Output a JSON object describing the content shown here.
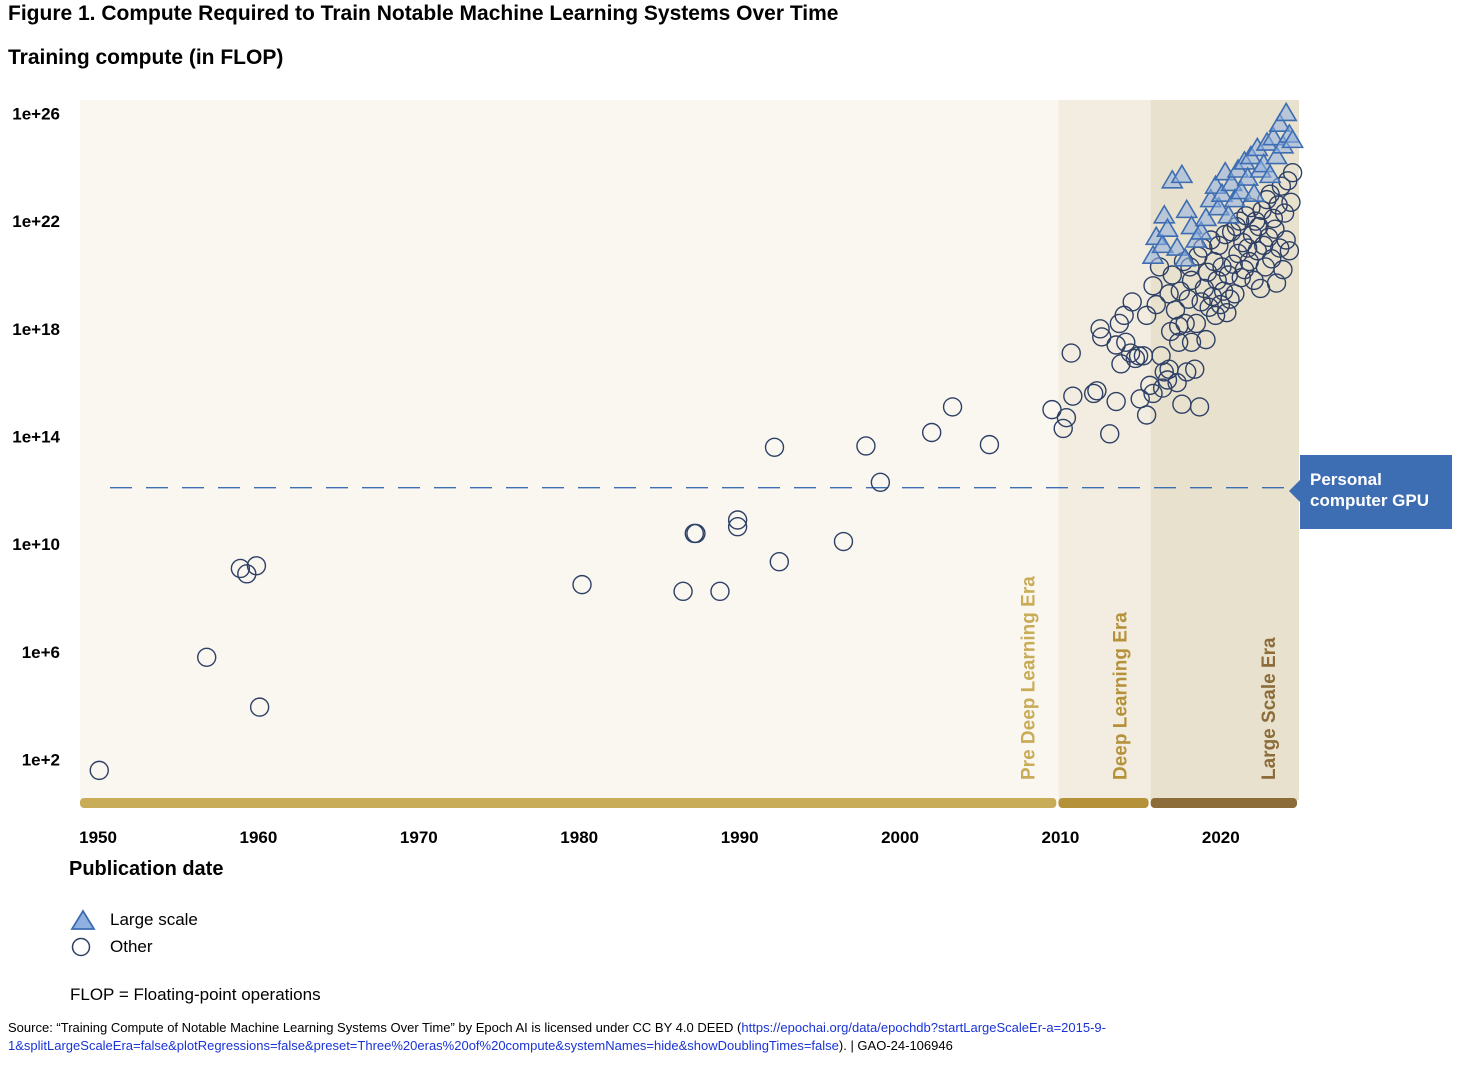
{
  "figure": {
    "title": "Figure 1. Compute Required to Train Notable Machine Learning Systems Over Time",
    "subtitle": "Training compute (in FLOP)"
  },
  "legend": {
    "large_scale": "Large scale",
    "other": "Other"
  },
  "footnote": "FLOP = Floating-point operations",
  "source": {
    "text_before": "Source: “Training Compute of Notable Machine Learning Systems Over Time” by Epoch AI is licensed under CC BY 4.0 DEED (",
    "link": "https://epochai.org/data/epochdb?startLargeScaleEr-a=2015-9-1&splitLargeScaleEra=false&plotRegressions=false&preset=Three%20eras%20of%20compute&systemNames=hide&showDoublingTimes=false",
    "text_after": ").  |  GAO-24-106946"
  },
  "colors": {
    "large_scale_fill": "#8fb0e0",
    "large_scale_stroke": "#3d6db2",
    "other_stroke": "#2e4066",
    "era1_bg": "#faf7f1",
    "era2_bg": "#f2ede0",
    "era3_bg": "#e8e1cd",
    "era1_bar": "#c9ac57",
    "era2_bar": "#b5913a",
    "era3_bar": "#8c6d3a",
    "gpu_box": "#3d6db2"
  },
  "chart_data": {
    "type": "scatter",
    "xlabel": "Publication date",
    "ylabel": "Training compute (in FLOP)",
    "y_scale": "log",
    "xlim": [
      1949,
      2025
    ],
    "ylim_log10": [
      0.5,
      26.5
    ],
    "x_ticks": [
      "1950",
      "1960",
      "1970",
      "1980",
      "1990",
      "2000",
      "2010",
      "2020"
    ],
    "y_ticks": [
      "1e+2",
      "1e+6",
      "1e+10",
      "1e+14",
      "1e+18",
      "1e+22",
      "1e+26"
    ],
    "eras": [
      {
        "label": "Pre Deep Learning Era",
        "start": 1949,
        "end": 2010
      },
      {
        "label": "Deep Learning Era",
        "start": 2010,
        "end": 2015.75
      },
      {
        "label": "Large Scale Era",
        "start": 2015.75,
        "end": 2025
      }
    ],
    "reference_line": {
      "label": "Personal computer GPU",
      "y_log10": 12.1
    },
    "series": [
      {
        "name": "Other",
        "points": [
          [
            1950.2,
            1.6
          ],
          [
            1956.9,
            5.8
          ],
          [
            1959,
            9.1
          ],
          [
            1959.4,
            8.9
          ],
          [
            1960,
            9.2
          ],
          [
            1960.2,
            3.95
          ],
          [
            1980.3,
            8.5
          ],
          [
            1986.6,
            8.25
          ],
          [
            1987.3,
            10.4
          ],
          [
            1987.4,
            10.4
          ],
          [
            1988.9,
            8.25
          ],
          [
            1990,
            10.65
          ],
          [
            1990,
            10.9
          ],
          [
            1992.3,
            13.6
          ],
          [
            1992.6,
            9.35
          ],
          [
            1996.6,
            10.1
          ],
          [
            1998,
            13.65
          ],
          [
            1998.9,
            12.3
          ],
          [
            2002.1,
            14.15
          ],
          [
            2003.4,
            15.1
          ],
          [
            2005.7,
            13.7
          ],
          [
            2009.6,
            15.0
          ],
          [
            2010.3,
            14.3
          ],
          [
            2010.5,
            14.7
          ],
          [
            2010.8,
            17.1
          ],
          [
            2010.9,
            15.5
          ],
          [
            2012.2,
            15.6
          ],
          [
            2012.4,
            15.7
          ],
          [
            2012.6,
            18.0
          ],
          [
            2012.7,
            17.7
          ],
          [
            2013.2,
            14.1
          ],
          [
            2013.6,
            15.3
          ],
          [
            2013.6,
            17.4
          ],
          [
            2013.8,
            18.2
          ],
          [
            2013.9,
            16.7
          ],
          [
            2014.1,
            18.5
          ],
          [
            2014.2,
            17.5
          ],
          [
            2014.5,
            17.1
          ],
          [
            2014.6,
            19.0
          ],
          [
            2014.8,
            16.9
          ],
          [
            2015.0,
            17.0
          ],
          [
            2015.1,
            15.4
          ],
          [
            2015.3,
            17.0
          ],
          [
            2015.5,
            18.5
          ],
          [
            2015.5,
            14.8
          ],
          [
            2015.7,
            15.9
          ],
          [
            2015.9,
            19.6
          ],
          [
            2015.9,
            15.6
          ],
          [
            2016.1,
            18.9
          ],
          [
            2016.3,
            20.3
          ],
          [
            2016.4,
            17.0
          ],
          [
            2016.5,
            15.8
          ],
          [
            2016.6,
            16.4
          ],
          [
            2016.8,
            16.1
          ],
          [
            2016.9,
            19.3
          ],
          [
            2016.9,
            16.5
          ],
          [
            2017.0,
            17.9
          ],
          [
            2017.1,
            20.0
          ],
          [
            2017.3,
            18.7
          ],
          [
            2017.4,
            16.0
          ],
          [
            2017.5,
            17.5
          ],
          [
            2017.5,
            18.1
          ],
          [
            2017.6,
            19.4
          ],
          [
            2017.7,
            15.2
          ],
          [
            2017.8,
            20.5
          ],
          [
            2017.9,
            18.2
          ],
          [
            2018.0,
            16.4
          ],
          [
            2018.1,
            19.1
          ],
          [
            2018.2,
            20.3
          ],
          [
            2018.3,
            17.5
          ],
          [
            2018.3,
            19.8
          ],
          [
            2018.5,
            16.5
          ],
          [
            2018.6,
            18.2
          ],
          [
            2018.7,
            20.7
          ],
          [
            2018.8,
            15.1
          ],
          [
            2018.9,
            19.0
          ],
          [
            2019.0,
            21.0
          ],
          [
            2019.1,
            19.5
          ],
          [
            2019.2,
            17.6
          ],
          [
            2019.3,
            20.1
          ],
          [
            2019.4,
            18.8
          ],
          [
            2019.5,
            21.3
          ],
          [
            2019.6,
            19.2
          ],
          [
            2019.7,
            20.5
          ],
          [
            2019.8,
            18.5
          ],
          [
            2019.9,
            19.8
          ],
          [
            2020.0,
            21.1
          ],
          [
            2020.1,
            18.9
          ],
          [
            2020.2,
            20.3
          ],
          [
            2020.3,
            19.4
          ],
          [
            2020.4,
            21.5
          ],
          [
            2020.5,
            18.6
          ],
          [
            2020.6,
            20.0
          ],
          [
            2020.7,
            19.1
          ],
          [
            2020.8,
            21.6
          ],
          [
            2020.9,
            20.4
          ],
          [
            2021.0,
            19.3
          ],
          [
            2021.1,
            21.8
          ],
          [
            2021.2,
            20.8
          ],
          [
            2021.3,
            22.0
          ],
          [
            2021.4,
            19.9
          ],
          [
            2021.5,
            21.2
          ],
          [
            2021.6,
            20.2
          ],
          [
            2021.7,
            22.2
          ],
          [
            2021.8,
            21.0
          ],
          [
            2021.9,
            20.5
          ],
          [
            2022.0,
            22.5
          ],
          [
            2022.1,
            21.5
          ],
          [
            2022.2,
            19.8
          ],
          [
            2022.3,
            22.0
          ],
          [
            2022.4,
            20.9
          ],
          [
            2022.5,
            21.8
          ],
          [
            2022.6,
            19.5
          ],
          [
            2022.7,
            22.4
          ],
          [
            2022.8,
            21.1
          ],
          [
            2022.9,
            20.3
          ],
          [
            2023.0,
            22.8
          ],
          [
            2023.1,
            21.4
          ],
          [
            2023.2,
            23.0
          ],
          [
            2023.3,
            20.6
          ],
          [
            2023.4,
            22.1
          ],
          [
            2023.5,
            21.7
          ],
          [
            2023.6,
            19.7
          ],
          [
            2023.7,
            22.6
          ],
          [
            2023.8,
            21.0
          ],
          [
            2023.9,
            23.3
          ],
          [
            2024.0,
            20.2
          ],
          [
            2024.1,
            22.3
          ],
          [
            2024.2,
            21.3
          ],
          [
            2024.3,
            23.5
          ],
          [
            2024.4,
            20.9
          ],
          [
            2024.5,
            22.7
          ],
          [
            2024.6,
            23.8
          ]
        ]
      },
      {
        "name": "Large scale",
        "points": [
          [
            2015.9,
            20.7
          ],
          [
            2016.1,
            21.4
          ],
          [
            2016.5,
            21.1
          ],
          [
            2016.6,
            22.2
          ],
          [
            2016.8,
            21.7
          ],
          [
            2017.1,
            23.5
          ],
          [
            2017.4,
            21.0
          ],
          [
            2017.7,
            23.7
          ],
          [
            2017.9,
            20.6
          ],
          [
            2018.0,
            22.4
          ],
          [
            2018.3,
            21.8
          ],
          [
            2018.6,
            21.3
          ],
          [
            2018.9,
            21.6
          ],
          [
            2019.2,
            22.1
          ],
          [
            2019.5,
            22.8
          ],
          [
            2019.8,
            23.3
          ],
          [
            2020.0,
            22.5
          ],
          [
            2020.2,
            23.0
          ],
          [
            2020.4,
            23.8
          ],
          [
            2020.6,
            22.2
          ],
          [
            2020.8,
            23.4
          ],
          [
            2021.0,
            22.8
          ],
          [
            2021.2,
            23.9
          ],
          [
            2021.4,
            23.1
          ],
          [
            2021.6,
            24.2
          ],
          [
            2021.8,
            23.6
          ],
          [
            2022.0,
            24.4
          ],
          [
            2022.2,
            23.0
          ],
          [
            2022.4,
            24.7
          ],
          [
            2022.6,
            23.9
          ],
          [
            2022.8,
            24.1
          ],
          [
            2023.0,
            24.9
          ],
          [
            2023.2,
            23.7
          ],
          [
            2023.4,
            25.1
          ],
          [
            2023.6,
            24.4
          ],
          [
            2023.8,
            25.6
          ],
          [
            2024.0,
            24.8
          ],
          [
            2024.2,
            26.0
          ],
          [
            2024.4,
            25.2
          ],
          [
            2024.6,
            25.0
          ]
        ]
      }
    ]
  }
}
